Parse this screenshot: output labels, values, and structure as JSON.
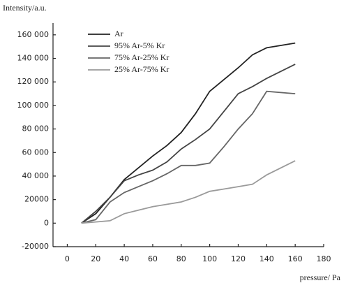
{
  "chart_data": {
    "type": "line",
    "y_label": "Intensity/a.u.",
    "x_label": "pressure/ Pa",
    "x": [
      10,
      20,
      30,
      40,
      50,
      60,
      70,
      80,
      90,
      100,
      110,
      120,
      130,
      140,
      160
    ],
    "series": [
      {
        "name": "Ar",
        "color": "#222222",
        "values": [
          0,
          8000,
          22000,
          37000,
          47000,
          57000,
          66000,
          77000,
          93000,
          112000,
          122000,
          132000,
          143000,
          149000,
          153000
        ]
      },
      {
        "name": "95% Ar-5% Kr",
        "color": "#444444",
        "values": [
          0,
          10000,
          22000,
          36000,
          41000,
          45000,
          52000,
          63000,
          71000,
          80000,
          95000,
          110000,
          116000,
          123000,
          135000
        ]
      },
      {
        "name": "75% Ar-25% Kr",
        "color": "#666666",
        "values": [
          0,
          3000,
          18000,
          26000,
          31000,
          36000,
          42000,
          49000,
          49000,
          51000,
          65000,
          80000,
          93000,
          112000,
          110000
        ]
      },
      {
        "name": "25% Ar-75% Kr",
        "color": "#9a9a9a",
        "values": [
          0,
          1000,
          2000,
          8000,
          11000,
          14000,
          16000,
          18000,
          22000,
          27000,
          29000,
          31000,
          33000,
          41000,
          53000
        ]
      }
    ],
    "xlim": [
      -10,
      180
    ],
    "ylim": [
      -20000,
      170000
    ],
    "xticks": [
      0,
      20,
      40,
      60,
      80,
      100,
      120,
      140,
      160,
      180
    ],
    "yticks": [
      -20000,
      0,
      20000,
      {
        "value": 40000,
        "label": "40 000"
      },
      {
        "value": 60000,
        "label": "60 000"
      },
      {
        "value": 80000,
        "label": "80 000"
      },
      {
        "value": 100000,
        "label": "100 000"
      },
      {
        "value": 120000,
        "label": "120 000"
      },
      {
        "value": 140000,
        "label": "140 000"
      },
      {
        "value": 160000,
        "label": "160 000"
      }
    ],
    "legend": "upper left"
  }
}
